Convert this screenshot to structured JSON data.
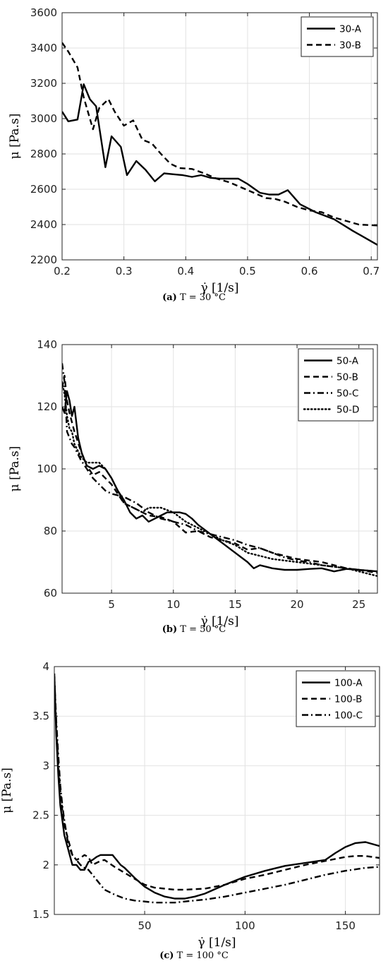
{
  "chart_data": [
    {
      "type": "line",
      "caption_label": "(a)",
      "caption_text": "T = 30 °C",
      "xlabel": "γ̇ [1/s]",
      "ylabel": "μ [Pa.s]",
      "xlim": [
        0.2,
        0.71
      ],
      "ylim": [
        2200,
        3600
      ],
      "xticks": [
        0.2,
        0.3,
        0.4,
        0.5,
        0.6,
        0.7
      ],
      "yticks": [
        2200,
        2400,
        2600,
        2800,
        3000,
        3200,
        3400,
        3600
      ],
      "grid": true,
      "legend": "top-right",
      "series": [
        {
          "name": "30-A",
          "style": "solid",
          "x": [
            0.2,
            0.21,
            0.225,
            0.235,
            0.245,
            0.255,
            0.27,
            0.28,
            0.295,
            0.305,
            0.32,
            0.335,
            0.35,
            0.365,
            0.38,
            0.395,
            0.41,
            0.425,
            0.44,
            0.455,
            0.47,
            0.485,
            0.5,
            0.52,
            0.535,
            0.55,
            0.565,
            0.585,
            0.61,
            0.64,
            0.67,
            0.71
          ],
          "y": [
            3040,
            2985,
            2995,
            3195,
            3110,
            3070,
            2725,
            2900,
            2840,
            2680,
            2760,
            2710,
            2645,
            2690,
            2685,
            2680,
            2670,
            2680,
            2665,
            2660,
            2660,
            2660,
            2630,
            2580,
            2570,
            2570,
            2595,
            2515,
            2470,
            2430,
            2365,
            2285
          ]
        },
        {
          "name": "30-B",
          "style": "dashed",
          "x": [
            0.2,
            0.21,
            0.225,
            0.235,
            0.25,
            0.26,
            0.275,
            0.285,
            0.3,
            0.315,
            0.33,
            0.345,
            0.36,
            0.375,
            0.39,
            0.41,
            0.43,
            0.45,
            0.47,
            0.49,
            0.51,
            0.53,
            0.545,
            0.56,
            0.58,
            0.6,
            0.62,
            0.64,
            0.66,
            0.68,
            0.71
          ],
          "y": [
            3430,
            3380,
            3290,
            3120,
            2940,
            3060,
            3110,
            3040,
            2960,
            2990,
            2880,
            2860,
            2800,
            2745,
            2720,
            2715,
            2690,
            2660,
            2640,
            2610,
            2580,
            2550,
            2545,
            2530,
            2500,
            2480,
            2470,
            2440,
            2420,
            2400,
            2395
          ]
        }
      ]
    },
    {
      "type": "line",
      "caption_label": "(b)",
      "caption_text": "T = 50 °C",
      "xlabel": "γ̇ [1/s]",
      "ylabel": "μ [Pa.s]",
      "xlim": [
        1,
        26.5
      ],
      "ylim": [
        60,
        140
      ],
      "xticks": [
        5,
        10,
        15,
        20,
        25
      ],
      "yticks": [
        60,
        80,
        100,
        120,
        140
      ],
      "grid": true,
      "legend": "top-right",
      "series": [
        {
          "name": "50-A",
          "style": "solid",
          "x": [
            1.0,
            1.2,
            1.4,
            1.6,
            1.8,
            2.0,
            2.3,
            2.6,
            3.0,
            3.5,
            4.0,
            4.5,
            5.0,
            5.5,
            6.0,
            6.5,
            7.0,
            7.5,
            8.0,
            8.5,
            9.0,
            9.5,
            10.0,
            10.5,
            11.0,
            11.5,
            12.0,
            13.0,
            14.0,
            15.0,
            16.0,
            16.5,
            17.0,
            18.0,
            19.0,
            20.0,
            21.0,
            22.0,
            23.0,
            24.0,
            25.0,
            26.5
          ],
          "y": [
            120,
            118,
            125,
            122,
            117,
            120,
            110,
            105,
            101,
            100,
            101,
            100,
            97,
            93,
            90,
            86,
            84,
            85,
            83,
            84,
            85,
            86,
            86,
            86,
            85.5,
            84,
            82,
            79,
            76,
            73,
            70,
            68,
            69,
            68,
            67.5,
            67.5,
            67.8,
            68,
            67,
            67.8,
            67.5,
            67
          ]
        },
        {
          "name": "50-B",
          "style": "dashed",
          "x": [
            1.0,
            1.2,
            1.4,
            1.6,
            1.8,
            2.0,
            2.5,
            3.0,
            3.5,
            4.0,
            4.5,
            5.0,
            6.0,
            7.0,
            8.0,
            9.0,
            10.0,
            11.0,
            12.0,
            13.0,
            14.0,
            15.0,
            16.0,
            17.0,
            18.0,
            19.0,
            20.0,
            21.0,
            22.0,
            23.0,
            24.0,
            25.0,
            26.5
          ],
          "y": [
            126,
            130,
            122,
            118,
            115,
            112,
            106,
            101,
            98,
            99,
            97,
            95,
            89,
            87,
            85,
            84.5,
            83,
            79.5,
            80,
            78,
            77,
            76,
            74,
            74.5,
            73,
            72,
            71,
            70.5,
            70,
            69,
            68,
            67.5,
            66.5
          ]
        },
        {
          "name": "50-C",
          "style": "dashdot",
          "x": [
            1.0,
            1.2,
            1.4,
            1.6,
            1.8,
            2.0,
            2.5,
            3.0,
            3.5,
            4.0,
            4.5,
            5.0,
            6.0,
            7.0,
            8.0,
            9.0,
            10.0,
            11.0,
            12.0,
            13.0,
            14.0,
            15.0,
            16.0,
            17.0,
            18.0,
            19.0,
            20.0,
            21.0,
            22.0,
            23.0,
            24.0,
            25.0,
            26.5
          ],
          "y": [
            134,
            128,
            112,
            110,
            108,
            107,
            103,
            100,
            97,
            95,
            93,
            92,
            91,
            89,
            86,
            84,
            83,
            82,
            80,
            79,
            78,
            77,
            75.5,
            74.5,
            73,
            71.5,
            70.5,
            70,
            69,
            68.5,
            68,
            67.5,
            67
          ]
        },
        {
          "name": "50-D",
          "style": "dotted",
          "x": [
            1.0,
            1.2,
            1.4,
            1.6,
            1.8,
            2.0,
            2.5,
            3.0,
            3.5,
            4.0,
            4.5,
            5.0,
            6.0,
            7.0,
            7.5,
            8.0,
            9.0,
            10.0,
            11.0,
            12.0,
            13.0,
            14.0,
            15.0,
            16.0,
            17.0,
            18.0,
            19.0,
            20.0,
            21.0,
            22.0,
            23.0,
            24.0,
            25.0,
            26.5
          ],
          "y": [
            128,
            124,
            117,
            113,
            112,
            108,
            104,
            102,
            102,
            102,
            100,
            97,
            89,
            87,
            86,
            87.5,
            87.5,
            86,
            83,
            81,
            79,
            77,
            75.5,
            73,
            72,
            71,
            70.5,
            70,
            69.5,
            69,
            68.5,
            68,
            67,
            65.5
          ]
        }
      ]
    },
    {
      "type": "line",
      "caption_label": "(c)",
      "caption_text": "T = 100 °C",
      "xlabel": "γ̇ [1/s]",
      "ylabel": "μ [Pa.s]",
      "xlim": [
        5,
        167
      ],
      "ylim": [
        1.5,
        4
      ],
      "xticks": [
        50,
        100,
        150
      ],
      "yticks": [
        1.5,
        2,
        2.5,
        3,
        3.5,
        4
      ],
      "grid": true,
      "legend": "top-right",
      "series": [
        {
          "name": "100-A",
          "style": "solid",
          "x": [
            5,
            6,
            7,
            8,
            9,
            10,
            12,
            14,
            16,
            18,
            20,
            22,
            24,
            26,
            28,
            30,
            32,
            34,
            36,
            38,
            40,
            45,
            50,
            55,
            60,
            65,
            70,
            75,
            80,
            90,
            100,
            110,
            120,
            130,
            140,
            145,
            150,
            155,
            160,
            167
          ],
          "y": [
            3.93,
            3.3,
            2.9,
            2.6,
            2.45,
            2.3,
            2.15,
            2.0,
            2.0,
            1.95,
            1.95,
            2.03,
            2.05,
            2.08,
            2.1,
            2.1,
            2.1,
            2.1,
            2.05,
            2.0,
            1.97,
            1.87,
            1.78,
            1.72,
            1.68,
            1.66,
            1.66,
            1.68,
            1.71,
            1.8,
            1.88,
            1.94,
            1.99,
            2.02,
            2.05,
            2.12,
            2.18,
            2.22,
            2.23,
            2.19
          ]
        },
        {
          "name": "100-B",
          "style": "dashed",
          "x": [
            5,
            6,
            7,
            8,
            9,
            10,
            12,
            14,
            16,
            18,
            20,
            22,
            24,
            26,
            28,
            30,
            35,
            40,
            45,
            50,
            55,
            60,
            65,
            70,
            80,
            90,
            100,
            110,
            120,
            130,
            140,
            150,
            155,
            160,
            167
          ],
          "y": [
            3.9,
            3.4,
            3.0,
            2.75,
            2.55,
            2.4,
            2.25,
            2.1,
            2.05,
            2.07,
            2.1,
            2.08,
            2.0,
            2.02,
            2.04,
            2.05,
            1.98,
            1.92,
            1.86,
            1.8,
            1.77,
            1.76,
            1.75,
            1.75,
            1.76,
            1.8,
            1.86,
            1.9,
            1.95,
            2.0,
            2.04,
            2.08,
            2.09,
            2.09,
            2.07
          ]
        },
        {
          "name": "100-C",
          "style": "dashdot",
          "x": [
            5,
            6,
            7,
            8,
            9,
            10,
            12,
            14,
            16,
            18,
            20,
            22,
            24,
            26,
            28,
            30,
            35,
            40,
            45,
            50,
            55,
            60,
            65,
            70,
            80,
            90,
            100,
            110,
            120,
            130,
            140,
            150,
            160,
            167
          ],
          "y": [
            3.9,
            3.45,
            3.1,
            2.8,
            2.6,
            2.45,
            2.2,
            2.1,
            2.05,
            2.0,
            1.97,
            1.95,
            1.9,
            1.85,
            1.8,
            1.75,
            1.7,
            1.66,
            1.64,
            1.63,
            1.62,
            1.62,
            1.62,
            1.63,
            1.65,
            1.68,
            1.72,
            1.76,
            1.8,
            1.85,
            1.9,
            1.94,
            1.97,
            1.98
          ]
        }
      ]
    }
  ]
}
